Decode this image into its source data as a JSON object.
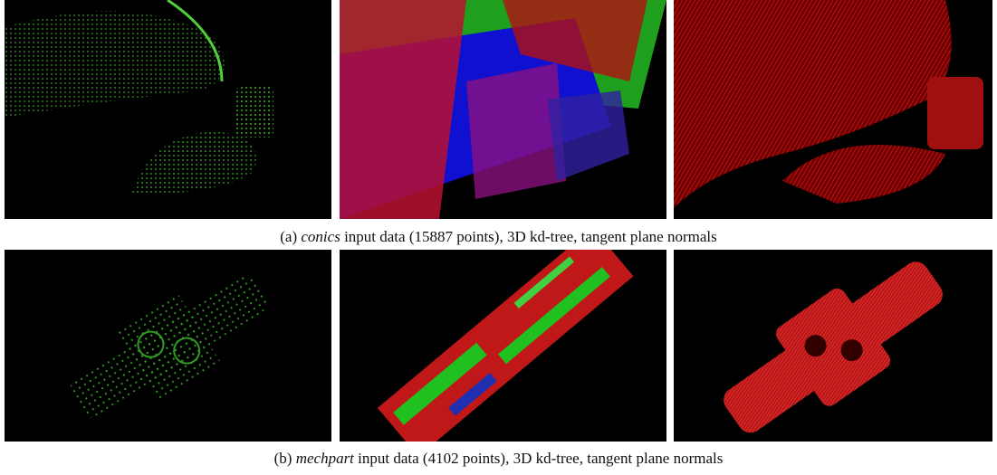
{
  "figure": {
    "rows": [
      {
        "caption": {
          "label": "(a)",
          "dataset": "conics",
          "text": "input data (15887 points), 3D kd-tree, tangent plane normals"
        }
      },
      {
        "caption": {
          "label": "(b)",
          "dataset": "mechpart",
          "text": "input data (4102 points), 3D kd-tree, tangent plane normals"
        }
      }
    ]
  }
}
